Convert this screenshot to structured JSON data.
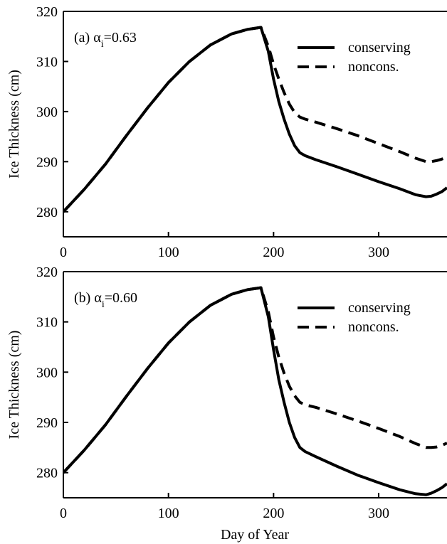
{
  "chart_data": [
    {
      "type": "line",
      "panel_label": "(a) α",
      "panel_label_sub": "i",
      "panel_label_value": "=0.63",
      "xlabel": "",
      "ylabel": "Ice Thickness (cm)",
      "xlim": [
        0,
        365
      ],
      "ylim": [
        275,
        320
      ],
      "xticks": [
        0,
        100,
        200,
        300
      ],
      "yticks": [
        280,
        290,
        300,
        310,
        320
      ],
      "legend": "top-right",
      "grid": false,
      "series": [
        {
          "name": "conserving",
          "style": "solid",
          "color": "#000000",
          "x": [
            0,
            20,
            40,
            60,
            80,
            100,
            120,
            140,
            160,
            175,
            188,
            195,
            200,
            205,
            210,
            215,
            220,
            225,
            230,
            240,
            260,
            280,
            300,
            320,
            335,
            345,
            350,
            355,
            360,
            365
          ],
          "y": [
            280.0,
            284.5,
            289.5,
            295.2,
            300.7,
            305.8,
            310.0,
            313.3,
            315.5,
            316.4,
            316.8,
            312.0,
            306.5,
            302.0,
            298.5,
            295.5,
            293.2,
            291.8,
            291.2,
            290.4,
            289.0,
            287.5,
            286.0,
            284.6,
            283.4,
            283.0,
            283.1,
            283.5,
            284.0,
            284.8
          ]
        },
        {
          "name": "noncons.",
          "style": "dashed",
          "color": "#000000",
          "x": [
            0,
            20,
            40,
            60,
            80,
            100,
            120,
            140,
            160,
            175,
            188,
            195,
            200,
            205,
            210,
            215,
            220,
            225,
            230,
            240,
            260,
            280,
            300,
            320,
            335,
            345,
            350,
            355,
            360,
            365
          ],
          "y": [
            280.0,
            284.5,
            289.5,
            295.2,
            300.7,
            305.8,
            310.0,
            313.3,
            315.5,
            316.4,
            316.8,
            313.0,
            309.5,
            306.5,
            303.8,
            301.5,
            299.8,
            298.9,
            298.5,
            297.9,
            296.6,
            295.2,
            293.6,
            292.0,
            290.7,
            290.0,
            290.0,
            290.2,
            290.5,
            290.9
          ]
        }
      ]
    },
    {
      "type": "line",
      "panel_label": "(b) α",
      "panel_label_sub": "i",
      "panel_label_value": "=0.60",
      "xlabel": "Day of Year",
      "ylabel": "Ice Thickness (cm)",
      "xlim": [
        0,
        365
      ],
      "ylim": [
        275,
        320
      ],
      "xticks": [
        0,
        100,
        200,
        300
      ],
      "yticks": [
        280,
        290,
        300,
        310,
        320
      ],
      "legend": "top-right",
      "grid": false,
      "series": [
        {
          "name": "conserving",
          "style": "solid",
          "color": "#000000",
          "x": [
            0,
            20,
            40,
            60,
            80,
            100,
            120,
            140,
            160,
            175,
            188,
            195,
            200,
            205,
            210,
            215,
            220,
            225,
            230,
            240,
            260,
            280,
            300,
            320,
            335,
            345,
            350,
            355,
            360,
            365
          ],
          "y": [
            280.0,
            284.5,
            289.5,
            295.2,
            300.7,
            305.8,
            310.0,
            313.3,
            315.5,
            316.4,
            316.8,
            311.0,
            304.5,
            298.5,
            294.0,
            290.0,
            287.0,
            285.0,
            284.2,
            283.2,
            281.3,
            279.5,
            278.0,
            276.6,
            275.8,
            275.6,
            275.9,
            276.4,
            277.0,
            277.8
          ]
        },
        {
          "name": "noncons.",
          "style": "dashed",
          "color": "#000000",
          "x": [
            0,
            20,
            40,
            60,
            80,
            100,
            120,
            140,
            160,
            175,
            188,
            195,
            200,
            205,
            210,
            215,
            220,
            225,
            230,
            240,
            260,
            280,
            300,
            320,
            335,
            345,
            350,
            355,
            360,
            365
          ],
          "y": [
            280.0,
            284.5,
            289.5,
            295.2,
            300.7,
            305.8,
            310.0,
            313.3,
            315.5,
            316.4,
            316.8,
            312.0,
            307.0,
            303.0,
            299.8,
            297.2,
            295.3,
            294.0,
            293.5,
            293.0,
            291.7,
            290.3,
            288.8,
            287.2,
            285.8,
            285.0,
            285.0,
            285.1,
            285.4,
            285.9
          ]
        }
      ]
    }
  ]
}
